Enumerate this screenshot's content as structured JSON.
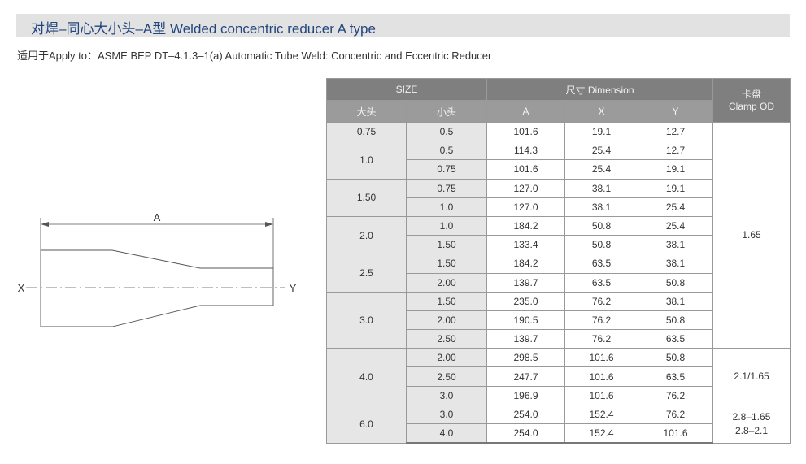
{
  "title": "对焊–同心大小头–A型 Welded concentric reducer A type",
  "apply_to": {
    "label": "适用于Apply to：",
    "text": "ASME BEP DT–4.1.3–1(a) Automatic Tube Weld: Concentric and Eccentric Reducer"
  },
  "drawing": {
    "dim_label": "A",
    "left_label": "X",
    "right_label": "Y"
  },
  "table": {
    "size_header": "SIZE",
    "dimension_header": "尺寸 Dimension",
    "clamp_header_line1": "卡盘",
    "clamp_header_line2": "Clamp OD",
    "col_large": "大头",
    "col_small": "小头",
    "col_a": "A",
    "col_x": "X",
    "col_y": "Y",
    "groups": [
      {
        "large": "0.75",
        "rows": [
          [
            "0.5",
            "101.6",
            "19.1",
            "12.7"
          ]
        ]
      },
      {
        "large": "1.0",
        "rows": [
          [
            "0.5",
            "114.3",
            "25.4",
            "12.7"
          ],
          [
            "0.75",
            "101.6",
            "25.4",
            "19.1"
          ]
        ]
      },
      {
        "large": "1.50",
        "rows": [
          [
            "0.75",
            "127.0",
            "38.1",
            "19.1"
          ],
          [
            "1.0",
            "127.0",
            "38.1",
            "25.4"
          ]
        ]
      },
      {
        "large": "2.0",
        "rows": [
          [
            "1.0",
            "184.2",
            "50.8",
            "25.4"
          ],
          [
            "1.50",
            "133.4",
            "50.8",
            "38.1"
          ]
        ]
      },
      {
        "large": "2.5",
        "rows": [
          [
            "1.50",
            "184.2",
            "63.5",
            "38.1"
          ],
          [
            "2.00",
            "139.7",
            "63.5",
            "50.8"
          ]
        ]
      },
      {
        "large": "3.0",
        "rows": [
          [
            "1.50",
            "235.0",
            "76.2",
            "38.1"
          ],
          [
            "2.00",
            "190.5",
            "76.2",
            "50.8"
          ],
          [
            "2.50",
            "139.7",
            "76.2",
            "63.5"
          ]
        ]
      },
      {
        "large": "4.0",
        "rows": [
          [
            "2.00",
            "298.5",
            "101.6",
            "50.8"
          ],
          [
            "2.50",
            "247.7",
            "101.6",
            "63.5"
          ],
          [
            "3.0",
            "196.9",
            "101.6",
            "76.2"
          ]
        ]
      },
      {
        "large": "6.0",
        "rows": [
          [
            "3.0",
            "254.0",
            "152.4",
            "76.2"
          ],
          [
            "4.0",
            "254.0",
            "152.4",
            "101.6"
          ]
        ]
      }
    ],
    "clamp_values": [
      {
        "text": "1.65"
      },
      {
        "text": "2.1/1.65"
      },
      {
        "text": "2.8–1.65"
      },
      {
        "text": "2.8–2.1"
      }
    ]
  }
}
